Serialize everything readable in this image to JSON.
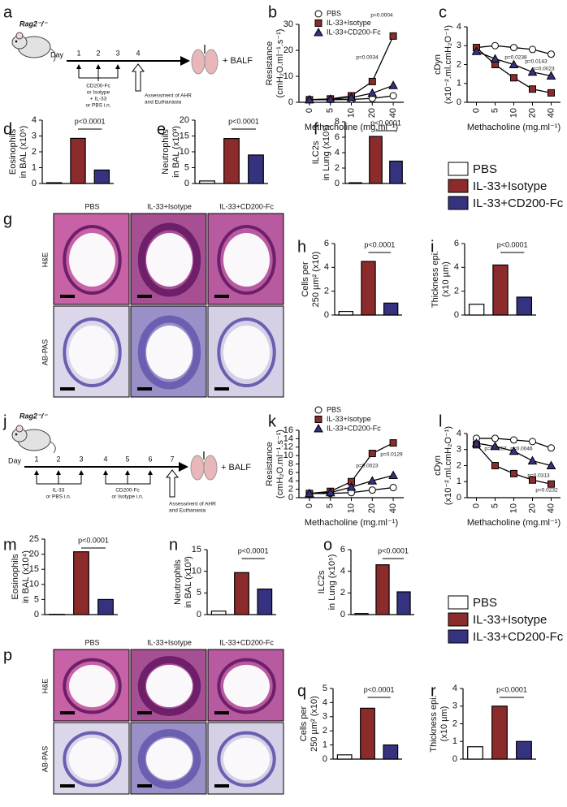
{
  "schematic_a": {
    "panel": "a",
    "strain": "Rag2⁻/⁻",
    "day_label": "Day",
    "days": [
      "1",
      "2",
      "3",
      "4"
    ],
    "treatment": [
      "CD200-Fc",
      "or Isotype",
      "+ IL-33",
      "or PBS i.n."
    ],
    "readout": "+ BALF",
    "assessment": [
      "Assessment of AHR",
      "and Euthanasia"
    ]
  },
  "schematic_j": {
    "panel": "j",
    "strain": "Rag2⁻/⁻",
    "day_label": "Day",
    "days": [
      "1",
      "2",
      "3",
      "4",
      "5",
      "6",
      "7"
    ],
    "treatment_1": [
      "IL-33",
      "or PBS i.n."
    ],
    "treatment_2": [
      "CD200-Fc",
      "or Isotype i.n."
    ],
    "readout": "+ BALF",
    "assessment": [
      "Assessment of AHR",
      "and Euthanasia"
    ]
  },
  "histology_g": {
    "panel": "g",
    "columns": [
      "PBS",
      "IL-33+Isotype",
      "IL-33+CD200-Fc"
    ],
    "rows": [
      "H&E",
      "AB-PAS"
    ]
  },
  "histology_p": {
    "panel": "p",
    "columns": [
      "PBS",
      "IL-33+Isotype",
      "IL-33+CD200-Fc"
    ],
    "rows": [
      "H&E",
      "AB-PAS"
    ]
  },
  "legends": [
    {
      "entries": [
        {
          "name": "PBS",
          "color": "#ffffff"
        },
        {
          "name": "IL-33+Isotype",
          "color": "#8b2b2b"
        },
        {
          "name": "IL-33+CD200-Fc",
          "color": "#35337f"
        }
      ]
    },
    {
      "entries": [
        {
          "name": "PBS",
          "color": "#ffffff"
        },
        {
          "name": "IL-33+Isotype",
          "color": "#8b2b2b"
        },
        {
          "name": "IL-33+CD200-Fc",
          "color": "#35337f"
        }
      ]
    }
  ],
  "chart_data": [
    {
      "panel": "b",
      "type": "line",
      "ylabel": [
        "Resistance",
        "(cmH₂O.ml⁻¹.s⁻¹)"
      ],
      "xlabel": "Methacholine (mg.ml⁻¹)",
      "categories": [
        "0",
        "5",
        "10",
        "20",
        "40"
      ],
      "ylim": [
        0,
        30
      ],
      "yticks": [
        0,
        10,
        20,
        30
      ],
      "legend": true,
      "series": [
        {
          "name": "PBS",
          "color": "#ffffff",
          "marker": "circle",
          "values": [
            1.0,
            1.0,
            1.1,
            1.5,
            2.5
          ]
        },
        {
          "name": "IL-33+Isotype",
          "color": "#8b2b2b",
          "marker": "square",
          "values": [
            1.0,
            1.3,
            2.5,
            8.0,
            25.5
          ]
        },
        {
          "name": "IL-33+CD200-Fc",
          "color": "#35337f",
          "marker": "triangle",
          "values": [
            1.0,
            1.2,
            1.8,
            3.5,
            6.5
          ]
        }
      ],
      "annotations": [
        "p=0.0004",
        "p=0.0034"
      ]
    },
    {
      "panel": "c",
      "type": "line",
      "ylabel": [
        "cDyn",
        "(x10⁻².ml.cmH₂O⁻¹)"
      ],
      "xlabel": "Methacholine (mg.ml⁻¹)",
      "categories": [
        "0",
        "5",
        "10",
        "20",
        "40"
      ],
      "ylim": [
        0,
        4
      ],
      "yticks": [
        0,
        1,
        2,
        3,
        4
      ],
      "legend": false,
      "series": [
        {
          "name": "PBS",
          "color": "#ffffff",
          "marker": "circle",
          "values": [
            2.9,
            3.0,
            2.9,
            2.8,
            2.55
          ]
        },
        {
          "name": "IL-33+Isotype",
          "color": "#8b2b2b",
          "marker": "square",
          "values": [
            2.9,
            2.0,
            1.3,
            0.7,
            0.5
          ]
        },
        {
          "name": "IL-33+CD200-Fc",
          "color": "#35337f",
          "marker": "triangle",
          "values": [
            2.7,
            2.3,
            2.0,
            1.6,
            1.4
          ]
        }
      ],
      "annotations": [
        "p=0.0238",
        "p=0.0143",
        "p=0.0023"
      ]
    },
    {
      "panel": "d",
      "type": "bar",
      "ylabel": [
        "Eosinophils",
        "in BAL (x10⁵)"
      ],
      "categories": [
        null,
        null,
        null
      ],
      "values": [
        0.05,
        2.85,
        0.85
      ],
      "colors": [
        "#ffffff",
        "#8b2b2b",
        "#35337f"
      ],
      "ylim": [
        0,
        4
      ],
      "yticks": [
        0,
        1,
        2,
        3,
        4
      ],
      "annotations": [
        "p<0.0001"
      ]
    },
    {
      "panel": "e",
      "type": "bar",
      "ylabel": [
        "Neutrophils",
        "in BAL (x10³)"
      ],
      "categories": [
        null,
        null,
        null
      ],
      "values": [
        0.8,
        14.2,
        9.0
      ],
      "colors": [
        "#ffffff",
        "#8b2b2b",
        "#35337f"
      ],
      "ylim": [
        0,
        20
      ],
      "yticks": [
        0,
        5,
        10,
        15,
        20
      ],
      "annotations": [
        "p<0.0001"
      ]
    },
    {
      "panel": "f",
      "type": "bar",
      "ylabel": [
        "ILC2s",
        "in Lung (x10⁵)"
      ],
      "categories": [
        null,
        null,
        null
      ],
      "values": [
        0.1,
        6.1,
        2.9
      ],
      "colors": [
        "#ffffff",
        "#8b2b2b",
        "#35337f"
      ],
      "ylim": [
        0,
        8
      ],
      "yticks": [
        0,
        2,
        4,
        6,
        8
      ],
      "annotations": [
        "p<0.0001"
      ]
    },
    {
      "panel": "h",
      "type": "bar",
      "ylabel": [
        "Cells per",
        "250 µm² (x10)"
      ],
      "categories": [
        null,
        null,
        null
      ],
      "values": [
        0.3,
        4.5,
        1.0
      ],
      "colors": [
        "#ffffff",
        "#8b2b2b",
        "#35337f"
      ],
      "ylim": [
        0,
        6
      ],
      "yticks": [
        0,
        2,
        4,
        6
      ],
      "annotations": [
        "p<0.0001"
      ]
    },
    {
      "panel": "i",
      "type": "bar",
      "ylabel": [
        "Thickness epi.",
        "(x10 µm)"
      ],
      "categories": [
        null,
        null,
        null
      ],
      "values": [
        0.9,
        4.2,
        1.5
      ],
      "colors": [
        "#ffffff",
        "#8b2b2b",
        "#35337f"
      ],
      "ylim": [
        0,
        6
      ],
      "yticks": [
        0,
        2,
        4,
        6
      ],
      "annotations": [
        "p<0.0001"
      ]
    },
    {
      "panel": "k",
      "type": "line",
      "ylabel": [
        "Resistance",
        "(cmH₂O.ml⁻¹.s⁻¹)"
      ],
      "xlabel": "Methacholine (mg.ml⁻¹)",
      "categories": [
        "0",
        "5",
        "10",
        "20",
        "40"
      ],
      "ylim": [
        0,
        16
      ],
      "yticks": [
        0,
        2,
        4,
        6,
        8,
        10,
        12,
        14,
        16
      ],
      "legend": true,
      "series": [
        {
          "name": "PBS",
          "color": "#ffffff",
          "marker": "circle",
          "values": [
            1.0,
            1.0,
            1.2,
            1.8,
            2.4
          ]
        },
        {
          "name": "IL-33+Isotype",
          "color": "#8b2b2b",
          "marker": "square",
          "values": [
            1.0,
            1.5,
            3.8,
            10.5,
            13.0
          ]
        },
        {
          "name": "IL-33+CD200-Fc",
          "color": "#35337f",
          "marker": "triangle",
          "values": [
            1.0,
            1.2,
            2.5,
            4.0,
            5.3
          ]
        }
      ],
      "annotations": [
        "p=0.0023",
        "p=0.0129"
      ]
    },
    {
      "panel": "l",
      "type": "line",
      "ylabel": [
        "cDyn",
        "(x10⁻².ml.cmH₂O⁻¹)"
      ],
      "xlabel": "Methacholine (mg.ml⁻¹)",
      "categories": [
        "0",
        "5",
        "10",
        "20",
        "40"
      ],
      "ylim": [
        0,
        4
      ],
      "yticks": [
        0,
        1,
        2,
        3,
        4
      ],
      "legend": false,
      "series": [
        {
          "name": "PBS",
          "color": "#ffffff",
          "marker": "circle",
          "values": [
            3.7,
            3.7,
            3.6,
            3.5,
            3.1
          ]
        },
        {
          "name": "IL-33+Isotype",
          "color": "#8b2b2b",
          "marker": "square",
          "values": [
            3.3,
            2.0,
            1.5,
            1.1,
            0.85
          ]
        },
        {
          "name": "IL-33+CD200-Fc",
          "color": "#35337f",
          "marker": "triangle",
          "values": [
            3.4,
            3.2,
            2.9,
            2.3,
            2.0
          ]
        }
      ],
      "annotations": [
        "p=0.0267",
        "p=0.0046",
        "p=0.0313",
        "p=0.0232"
      ]
    },
    {
      "panel": "m",
      "type": "bar",
      "ylabel": [
        "Eosinophils",
        "in BAL (x10⁴)"
      ],
      "categories": [
        null,
        null,
        null
      ],
      "values": [
        0.1,
        20.8,
        5.0
      ],
      "colors": [
        "#ffffff",
        "#8b2b2b",
        "#35337f"
      ],
      "ylim": [
        0,
        25
      ],
      "yticks": [
        0,
        5,
        10,
        15,
        20,
        25
      ],
      "annotations": [
        "p<0.0001"
      ]
    },
    {
      "panel": "n",
      "type": "bar",
      "ylabel": [
        "Neutrophils",
        "in BAL (x10³)"
      ],
      "categories": [
        null,
        null,
        null
      ],
      "values": [
        0.8,
        9.7,
        5.9
      ],
      "colors": [
        "#ffffff",
        "#8b2b2b",
        "#35337f"
      ],
      "ylim": [
        0,
        15
      ],
      "yticks": [
        0,
        5,
        10,
        15
      ],
      "annotations": [
        "p<0.0001"
      ]
    },
    {
      "panel": "o",
      "type": "bar",
      "ylabel": [
        "ILC2s",
        "in Lung (x10⁵)"
      ],
      "categories": [
        null,
        null,
        null
      ],
      "values": [
        0.1,
        4.6,
        2.1
      ],
      "colors": [
        "#ffffff",
        "#8b2b2b",
        "#35337f"
      ],
      "ylim": [
        0,
        6
      ],
      "yticks": [
        0,
        2,
        4,
        6
      ],
      "annotations": [
        "p<0.0001"
      ]
    },
    {
      "panel": "q",
      "type": "bar",
      "ylabel": [
        "Cells per",
        "250 µm² (x10)"
      ],
      "categories": [
        null,
        null,
        null
      ],
      "values": [
        0.3,
        3.6,
        1.0
      ],
      "colors": [
        "#ffffff",
        "#8b2b2b",
        "#35337f"
      ],
      "ylim": [
        0,
        5
      ],
      "yticks": [
        0,
        1,
        2,
        3,
        4,
        5
      ],
      "annotations": [
        "p<0.0001"
      ]
    },
    {
      "panel": "r",
      "type": "bar",
      "ylabel": [
        "Thickness epi.",
        "(x10 µm)"
      ],
      "categories": [
        null,
        null,
        null
      ],
      "values": [
        0.7,
        3.0,
        1.0
      ],
      "colors": [
        "#ffffff",
        "#8b2b2b",
        "#35337f"
      ],
      "ylim": [
        0,
        4
      ],
      "yticks": [
        0,
        1,
        2,
        3,
        4
      ],
      "annotations": [
        "p<0.0001"
      ]
    }
  ]
}
